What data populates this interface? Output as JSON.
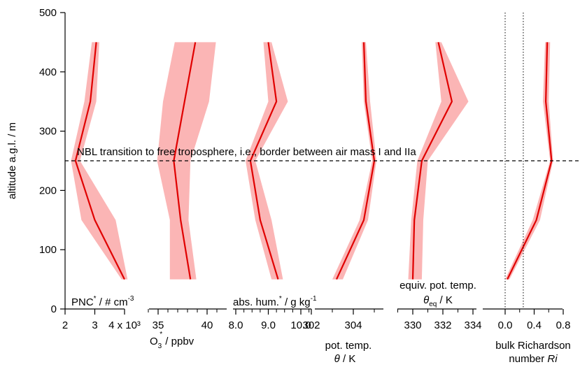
{
  "chart_data": {
    "type": "line",
    "shared_y": {
      "label": "altitude a.g.l. / m",
      "range": [
        0,
        500
      ],
      "ticks": [
        0,
        100,
        200,
        300,
        400,
        500
      ],
      "values": [
        50,
        150,
        250,
        350,
        450
      ]
    },
    "annotation": {
      "text": "NBL transition to free troposphere, i.e., border between air mass I and IIa",
      "y": 250,
      "style": "dashed"
    },
    "line_color": "#e00000",
    "band_color": "#fbb5b5",
    "panels": [
      {
        "id": "pnc",
        "label": "PNC* / # cm-3",
        "label_parts": [
          "PNC",
          "*",
          " / # cm",
          "-3"
        ],
        "xrange": [
          2000,
          4000
        ],
        "ticks": [
          {
            "v": 2000,
            "label": "2"
          },
          {
            "v": 3000,
            "label": "3"
          },
          {
            "v": 4000,
            "label": "4 x 10³"
          }
        ],
        "minor_ticks": [],
        "center": [
          4000,
          3000,
          2350,
          2850,
          3050
        ],
        "lower": [
          3900,
          2550,
          2200,
          2650,
          2900
        ],
        "upper": [
          4100,
          3700,
          2500,
          3050,
          3150
        ]
      },
      {
        "id": "o3",
        "label": "O3* / ppbv",
        "label_parts": [
          "O",
          "3",
          "*",
          " / ppbv"
        ],
        "xrange": [
          34,
          41
        ],
        "ticks": [
          {
            "v": 35,
            "label": "35"
          },
          {
            "v": 40,
            "label": "40"
          }
        ],
        "minor_ticks": [
          34,
          36,
          37,
          38,
          39,
          41
        ],
        "center": [
          38.3,
          37.3,
          36.6,
          37.7,
          38.8
        ],
        "lower": [
          36.2,
          36.2,
          34.9,
          35.5,
          36.7
        ],
        "upper": [
          38.9,
          38.1,
          38.3,
          40.2,
          40.9
        ]
      },
      {
        "id": "abshum",
        "label": "abs. hum.* / g kg-1",
        "label_parts": [
          "abs. hum.",
          "*",
          " / g kg",
          "-1"
        ],
        "xrange": [
          7.65,
          10.3
        ],
        "ticks": [
          {
            "v": 8.0,
            "label": "8.0"
          },
          {
            "v": 9.0,
            "label": "9.0"
          },
          {
            "v": 10.0,
            "label": "10.0"
          }
        ],
        "minor_ticks": [
          7.75,
          8.25,
          8.5,
          8.75,
          9.25,
          9.5,
          9.75,
          10.25
        ],
        "center": [
          9.3,
          8.75,
          8.45,
          9.25,
          9.0
        ],
        "lower": [
          9.1,
          8.6,
          8.3,
          9.0,
          8.85
        ],
        "upper": [
          9.45,
          9.1,
          8.6,
          9.6,
          9.1
        ]
      },
      {
        "id": "theta",
        "label": "pot. temp. θ / K",
        "label_lines": [
          "pot. temp.",
          "θ / K"
        ],
        "xrange": [
          301.9,
          306.2
        ],
        "ticks": [
          {
            "v": 302,
            "label": "302"
          },
          {
            "v": 304,
            "label": "304"
          }
        ],
        "minor_ticks": [
          303,
          305,
          306
        ],
        "center": [
          303.2,
          304.5,
          305.0,
          304.6,
          304.5
        ],
        "lower": [
          303.0,
          304.3,
          304.9,
          304.5,
          304.4
        ],
        "upper": [
          303.5,
          304.7,
          305.1,
          304.8,
          304.6
        ]
      },
      {
        "id": "thetaeq",
        "label": "equiv. pot. temp. θeq / K",
        "label_lines": [
          "equiv. pot. temp."
        ],
        "xrange": [
          328.2,
          334.1
        ],
        "ticks": [
          {
            "v": 330,
            "label": "330"
          },
          {
            "v": 332,
            "label": "332"
          },
          {
            "v": 334,
            "label": "334"
          }
        ],
        "minor_ticks": [
          329,
          331,
          333
        ],
        "center": [
          330.0,
          330.1,
          330.6,
          332.6,
          331.7
        ],
        "lower": [
          329.7,
          329.9,
          330.3,
          331.9,
          331.5
        ],
        "upper": [
          330.6,
          330.7,
          331.0,
          333.7,
          331.9
        ]
      },
      {
        "id": "ri",
        "label": "bulk Richardson number Ri",
        "label_lines": [
          "bulk Richardson",
          "number Ri"
        ],
        "xrange": [
          -0.15,
          0.9
        ],
        "ticks": [
          {
            "v": 0.0,
            "label": "0.0"
          },
          {
            "v": 0.4,
            "label": "0.4"
          },
          {
            "v": 0.8,
            "label": "0.8"
          }
        ],
        "minor_ticks": [
          0.2,
          0.6
        ],
        "vlines": [
          0.0,
          0.25
        ],
        "center": [
          0.03,
          0.43,
          0.64,
          0.56,
          0.58
        ],
        "lower": [
          0.0,
          0.38,
          0.62,
          0.52,
          0.55
        ],
        "upper": [
          0.06,
          0.48,
          0.66,
          0.6,
          0.62
        ]
      }
    ]
  }
}
